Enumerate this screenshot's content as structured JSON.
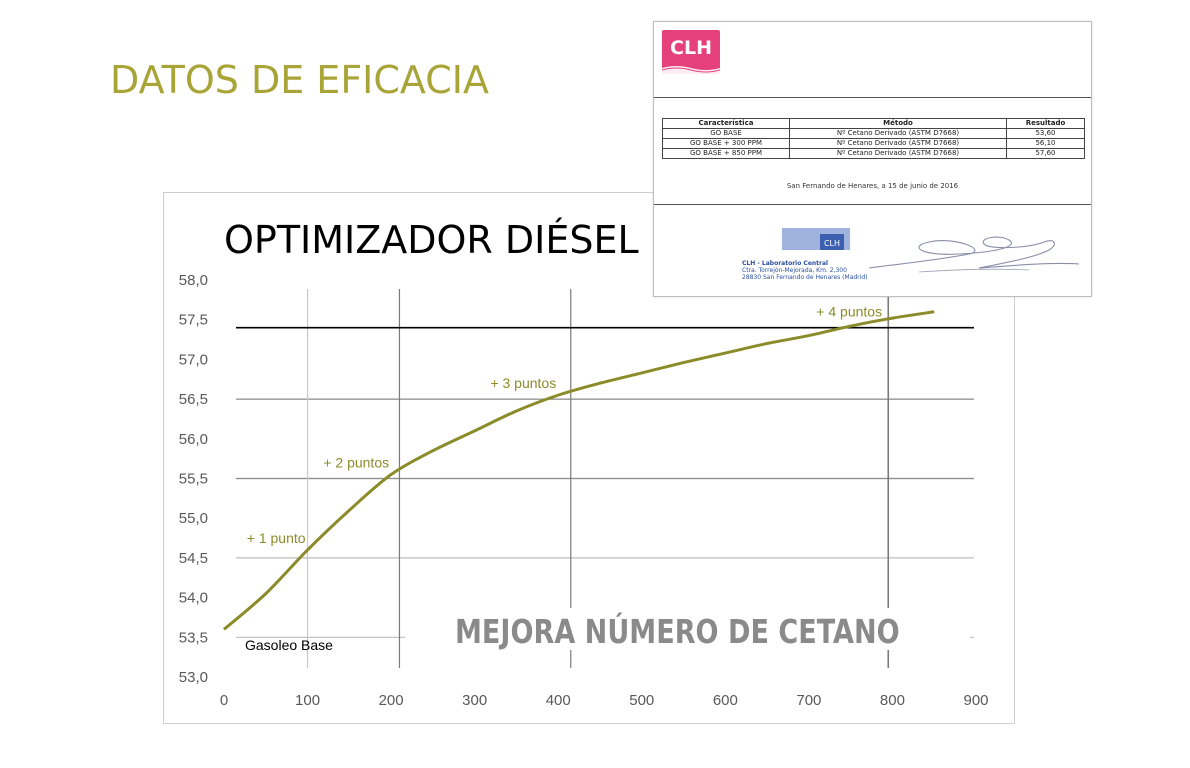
{
  "slide": {
    "title": "DATOS DE EFICACIA"
  },
  "chart_data": {
    "type": "line",
    "title": "OPTIMIZADOR DIÉSEL",
    "xlabel": "",
    "ylabel": "",
    "xlim": [
      0,
      900
    ],
    "ylim": [
      53.0,
      58.0
    ],
    "x_ticks": [
      "0",
      "100",
      "200",
      "300",
      "400",
      "500",
      "600",
      "700",
      "800",
      "900"
    ],
    "y_ticks": [
      "53,0",
      "53,5",
      "54,0",
      "54,5",
      "55,0",
      "55,5",
      "56,0",
      "56,5",
      "57,0",
      "57,5",
      "58,0"
    ],
    "grid": true,
    "series": [
      {
        "color": "#8b8b2a",
        "x": [
          0,
          50,
          100,
          150,
          200,
          250,
          300,
          350,
          400,
          450,
          500,
          550,
          600,
          650,
          700,
          750,
          800,
          850
        ],
        "y": [
          53.6,
          54.05,
          54.6,
          55.1,
          55.55,
          55.85,
          56.1,
          56.35,
          56.55,
          56.7,
          56.83,
          56.96,
          57.08,
          57.2,
          57.3,
          57.42,
          57.52,
          57.6
        ]
      }
    ],
    "vertical_lines_x": [
      100,
      210,
      415,
      795
    ],
    "horizontal_line_y": 57.4,
    "annotations": [
      {
        "text": "+ 1 punto",
        "x": 100,
        "y": 54.6
      },
      {
        "text": "+ 2 puntos",
        "x": 200,
        "y": 55.55
      },
      {
        "text": "+ 3 puntos",
        "x": 400,
        "y": 56.55
      },
      {
        "text": "+ 4 puntos",
        "x": 790,
        "y": 57.45
      }
    ],
    "base_label": "Gasoleo Base",
    "watermark": "MEJORA NÚMERO DE CETANO"
  },
  "report": {
    "logo": "CLH",
    "headers": [
      "Característica",
      "Método",
      "Resultado"
    ],
    "rows": [
      [
        "GO BASE",
        "Nº Cetano Derivado  (ASTM D7668)",
        "53,60"
      ],
      [
        "GO BASE + 300 PPM",
        "Nº Cetano Derivado  (ASTM D7668)",
        "56,10"
      ],
      [
        "GO BASE + 850 PPM",
        "Nº Cetano Derivado  (ASTM D7668)",
        "57,60"
      ]
    ],
    "date_line": "San Fernando de Henares, a 15 de junio de 2016",
    "stamp_text": "CLH",
    "lab_name": "CLH - Laboratorio Central",
    "lab_address1": "Ctra. Torrejón-Mejorada, Km. 2,300",
    "lab_address2": "28830 San Fernando de Henares (Madrid)"
  },
  "colors": {
    "title": "#a9a437",
    "series": "#8b8b2a",
    "clh_pink": "#e5407b"
  }
}
